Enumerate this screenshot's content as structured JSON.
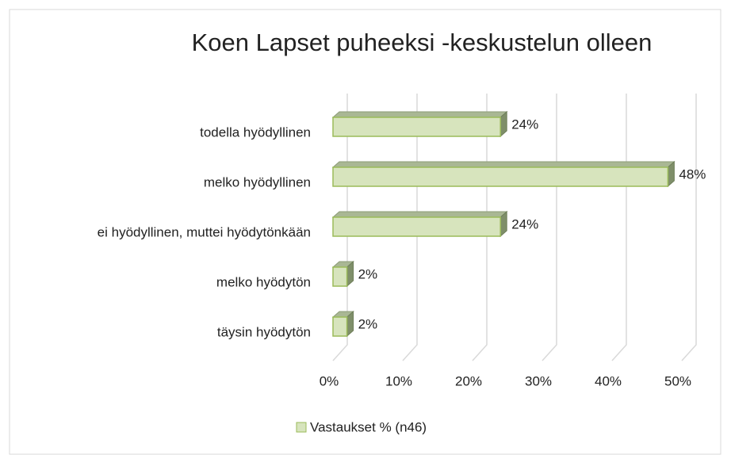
{
  "chart_data": {
    "type": "bar",
    "orientation": "horizontal",
    "title": "Koen Lapset puheeksi -keskustelun olleen",
    "categories": [
      "todella hyödyllinen",
      "melko hyödyllinen",
      "ei hyödyllinen, muttei hyödytönkään",
      "melko hyödytön",
      "täysin hyödytön"
    ],
    "series": [
      {
        "name": "Vastaukset % (n46)",
        "color": "#d7e4bd",
        "values": [
          24,
          48,
          24,
          2,
          2
        ],
        "value_labels": [
          "24%",
          "48%",
          "24%",
          "2%",
          "2%"
        ]
      }
    ],
    "xlim": [
      0,
      50
    ],
    "xticks": [
      {
        "value": 0,
        "label": "0%"
      },
      {
        "value": 10,
        "label": "10%"
      },
      {
        "value": 20,
        "label": "20%"
      },
      {
        "value": 30,
        "label": "30%"
      },
      {
        "value": 40,
        "label": "40%"
      },
      {
        "value": 50,
        "label": "50%"
      }
    ],
    "grid": true,
    "legend": "bottom"
  }
}
